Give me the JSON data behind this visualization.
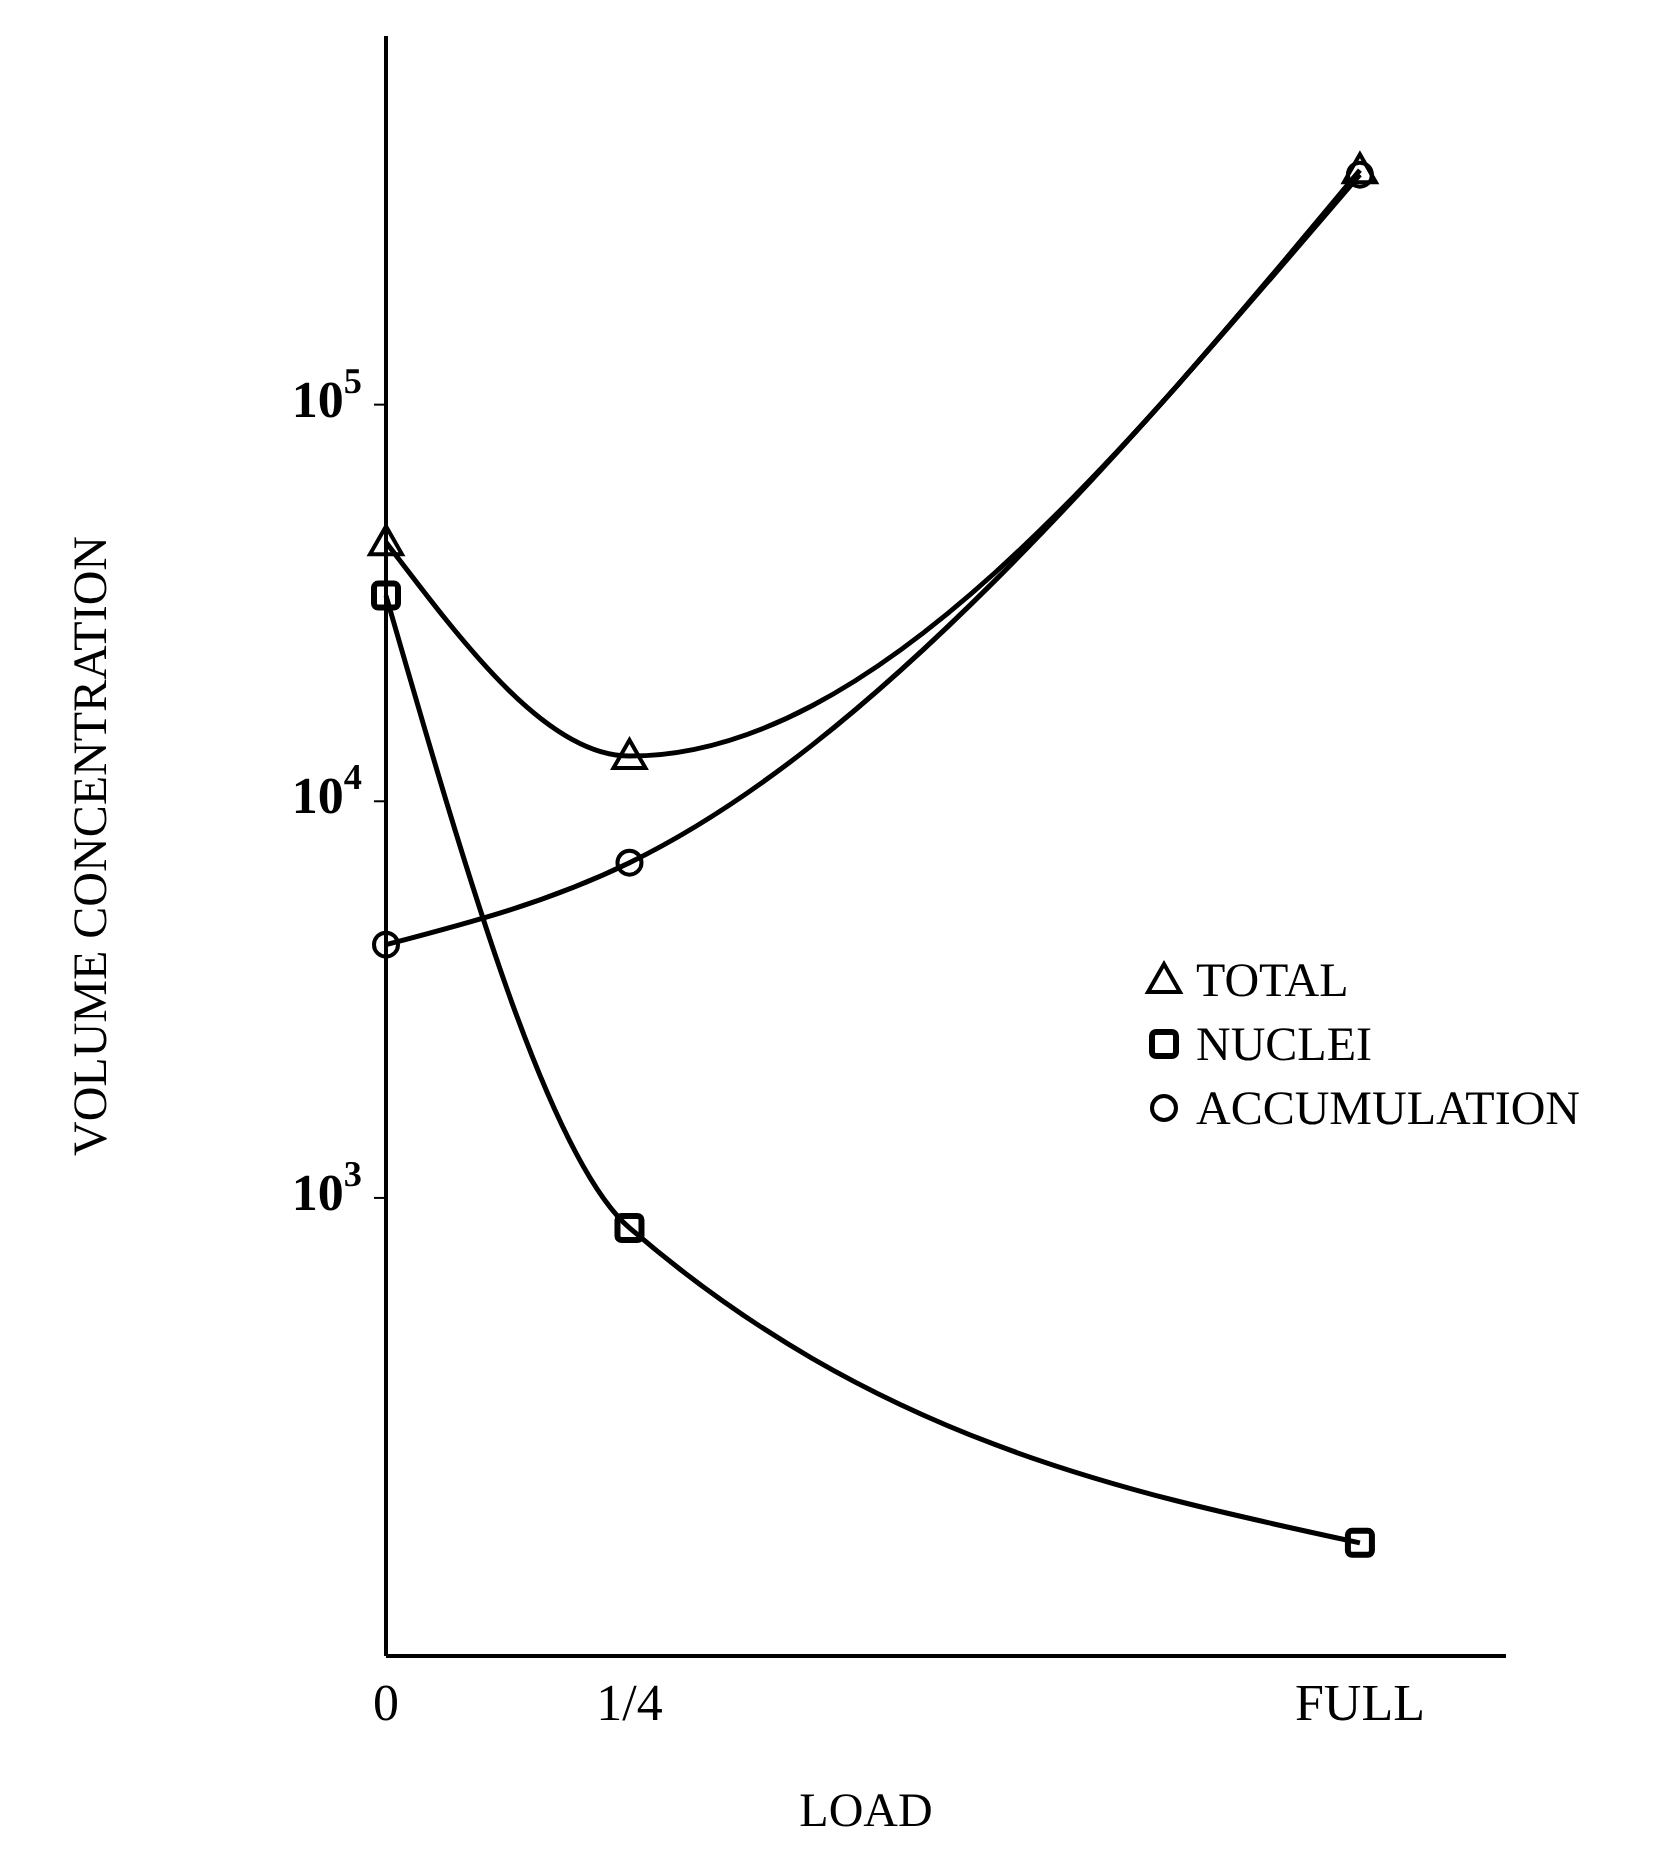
{
  "chart_data": {
    "type": "line",
    "xlabel": "LOAD",
    "ylabel": "VOLUME CONCENTRATION",
    "x": [
      0,
      0.25,
      1
    ],
    "xlim": [
      0,
      1.15
    ],
    "xticks": [
      {
        "value": 0,
        "label": "0"
      },
      {
        "value": 0.25,
        "label": "1/4"
      },
      {
        "value": 1,
        "label": "FULL"
      }
    ],
    "ylim": [
      70,
      850000
    ],
    "yticks": [
      {
        "value": 1000,
        "label": "10$^{3}$"
      },
      {
        "value": 10000,
        "label": "10$^{4}$"
      },
      {
        "value": 100000,
        "label": "10$^{5}$"
      }
    ],
    "log": true,
    "grid": false,
    "legend": "right",
    "series": [
      {
        "name": "TOTAL",
        "color": "#000000",
        "marker": "triangle",
        "values": [
          45000,
          13000,
          390000
        ]
      },
      {
        "name": "NUCLEI",
        "color": "#000000",
        "marker": "square",
        "values": [
          33000,
          840,
          135
        ]
      },
      {
        "name": "ACCUMULATION",
        "color": "#000000",
        "marker": "circle",
        "values": [
          4350,
          7000,
          380000
        ]
      }
    ]
  }
}
